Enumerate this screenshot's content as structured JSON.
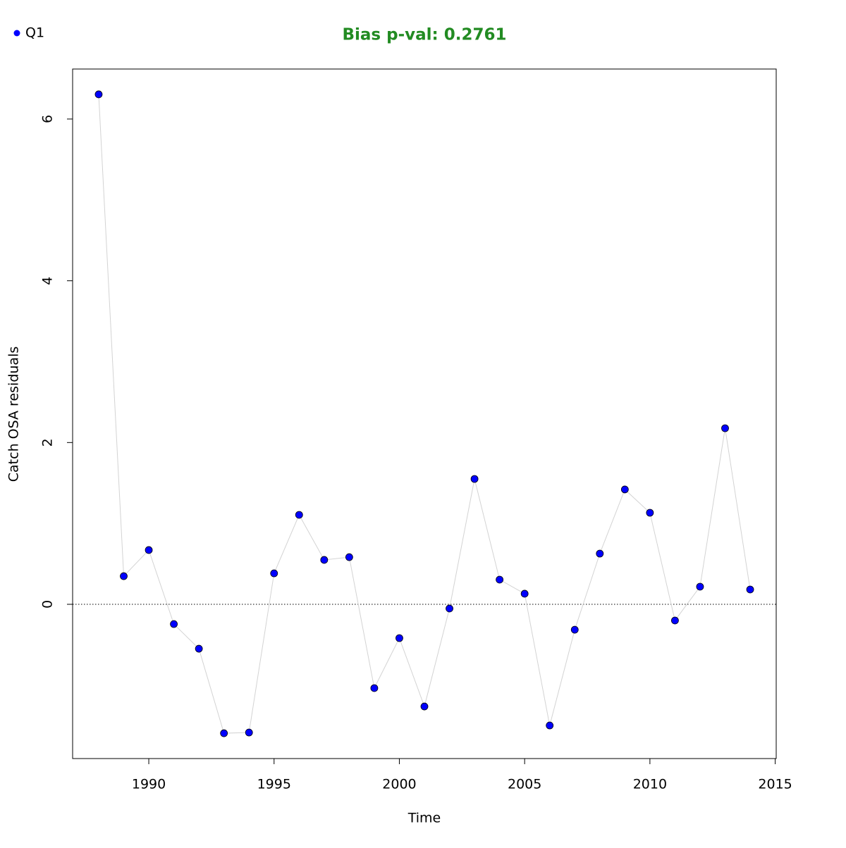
{
  "chart_data": {
    "type": "scatter",
    "title": "Bias p-val: 0.2761",
    "title_color": "#228b22",
    "x_label": "Time",
    "y_label": "Catch OSA residuals",
    "x": [
      1988,
      1989,
      1990,
      1991,
      1992,
      1993,
      1994,
      1995,
      1996,
      1997,
      1998,
      1999,
      2000,
      2001,
      2002,
      2003,
      2004,
      2005,
      2006,
      2007,
      2008,
      2009,
      2010,
      2011,
      2012,
      2013,
      2014
    ],
    "series": [
      {
        "name": "Q1",
        "color": "#0000ff",
        "line_color": "#d3d3d3",
        "values": [
          6.305,
          0.348,
          0.671,
          -0.244,
          -0.549,
          -1.594,
          -1.585,
          0.383,
          1.106,
          0.549,
          0.583,
          -1.036,
          -0.418,
          -1.263,
          -0.052,
          1.55,
          0.305,
          0.131,
          -1.498,
          -0.314,
          0.627,
          1.42,
          1.132,
          -0.2,
          0.218,
          2.177,
          0.183
        ]
      }
    ],
    "xlim": [
      1986.96,
      2015.04
    ],
    "ylim": [
      -1.907,
      6.618
    ],
    "xticks": [
      1990,
      1995,
      2000,
      2005,
      2010,
      2015
    ],
    "yticks": [
      0,
      2,
      4,
      6
    ],
    "hline": 0,
    "legend_position": "top-left"
  }
}
